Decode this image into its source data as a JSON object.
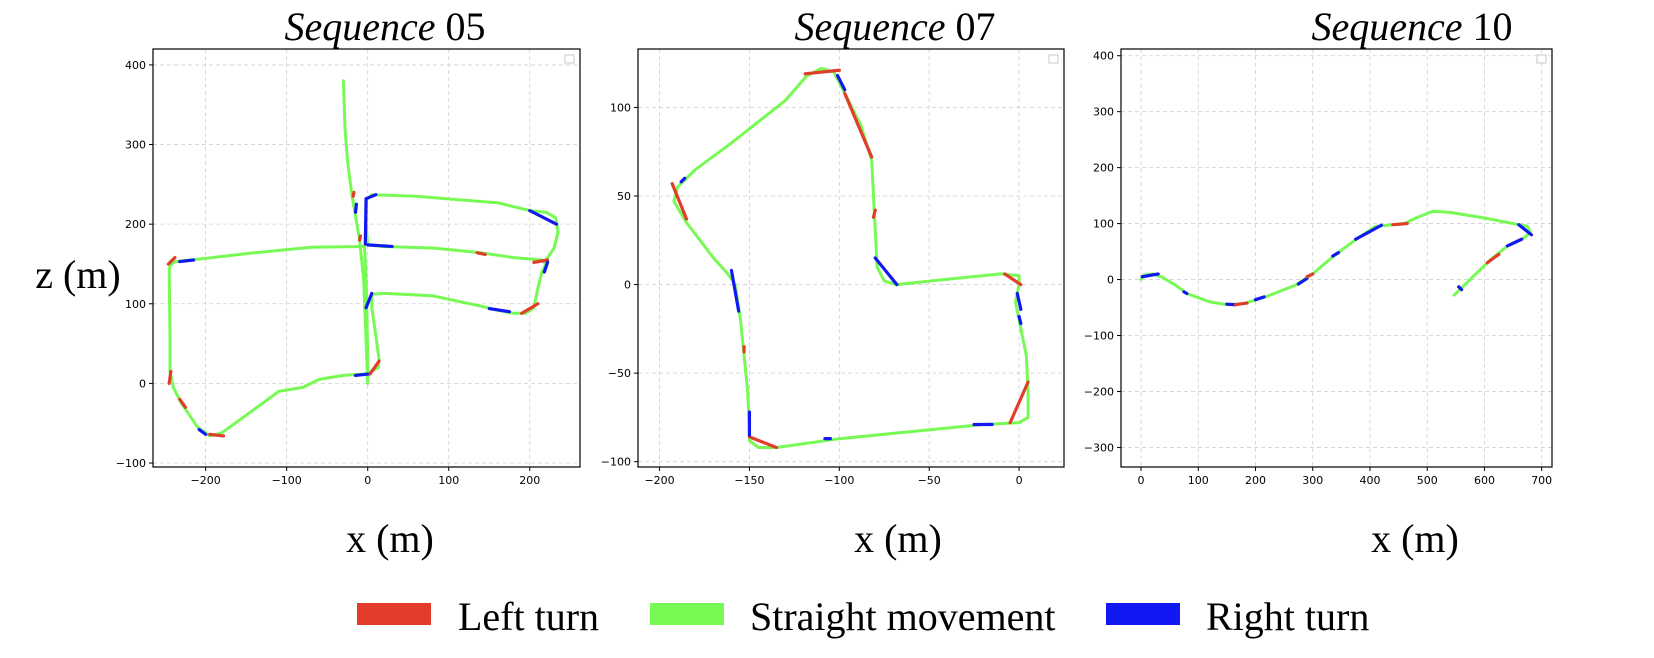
{
  "colors": {
    "left": "#e23d2a",
    "straight": "#77fb54",
    "right": "#1218f2"
  },
  "legend": {
    "placement": "bottom-center",
    "items": [
      {
        "key": "left",
        "label": "Left turn"
      },
      {
        "key": "straight",
        "label": "Straight movement"
      },
      {
        "key": "right",
        "label": "Right turn"
      }
    ]
  },
  "chart_data": [
    {
      "type": "line",
      "title_italic": "Sequence",
      "title_number": "05",
      "xlabel": "x (m)",
      "ylabel": "z (m)",
      "xlim": [
        -265,
        262
      ],
      "ylim": [
        -105,
        420
      ],
      "xticks": [
        -200,
        -100,
        0,
        100,
        200
      ],
      "yticks": [
        -100,
        0,
        100,
        200,
        300,
        400
      ],
      "grid": true,
      "trajectory": [
        [
          0,
          0
        ],
        [
          0,
          40
        ],
        [
          -2,
          130
        ],
        [
          -4,
          172
        ],
        [
          -70,
          171
        ],
        [
          -150,
          163
        ],
        [
          -200,
          157
        ],
        [
          -238,
          153
        ],
        [
          -244,
          148
        ],
        [
          -245,
          140
        ],
        [
          -244,
          60
        ],
        [
          -244,
          15
        ],
        [
          -240,
          -5
        ],
        [
          -230,
          -25
        ],
        [
          -210,
          -55
        ],
        [
          -195,
          -66
        ],
        [
          -180,
          -62
        ],
        [
          -150,
          -40
        ],
        [
          -110,
          -10
        ],
        [
          -80,
          -5
        ],
        [
          -60,
          5
        ],
        [
          -30,
          10
        ],
        [
          0,
          12
        ],
        [
          13,
          20
        ],
        [
          14,
          30
        ],
        [
          10,
          60
        ],
        [
          5,
          95
        ],
        [
          5,
          112
        ],
        [
          20,
          113
        ],
        [
          80,
          110
        ],
        [
          140,
          97
        ],
        [
          160,
          92
        ],
        [
          180,
          88
        ],
        [
          195,
          88
        ],
        [
          205,
          95
        ],
        [
          210,
          120
        ],
        [
          215,
          140
        ],
        [
          220,
          150
        ],
        [
          215,
          155
        ],
        [
          180,
          158
        ],
        [
          140,
          164
        ],
        [
          80,
          170
        ],
        [
          20,
          172
        ],
        [
          0,
          174
        ],
        [
          -2,
          200
        ],
        [
          -2,
          230
        ],
        [
          5,
          237
        ],
        [
          60,
          235
        ],
        [
          120,
          230
        ],
        [
          160,
          227
        ],
        [
          200,
          217
        ],
        [
          220,
          215
        ],
        [
          232,
          208
        ],
        [
          235,
          190
        ],
        [
          230,
          170
        ],
        [
          220,
          155
        ]
      ],
      "trajectory2": [
        [
          -30,
          380
        ],
        [
          -28,
          320
        ],
        [
          -25,
          280
        ],
        [
          -20,
          240
        ],
        [
          -10,
          180
        ],
        [
          -5,
          130
        ],
        [
          0,
          0
        ]
      ],
      "segments": [
        {
          "type": "left",
          "x": [
            -246,
            -238
          ],
          "z": [
            150,
            158
          ]
        },
        {
          "type": "right",
          "x": [
            -232,
            -215
          ],
          "z": [
            153,
            155
          ]
        },
        {
          "type": "left",
          "x": [
            -245,
            -243
          ],
          "z": [
            0,
            15
          ]
        },
        {
          "type": "left",
          "x": [
            -232,
            -225
          ],
          "z": [
            -20,
            -30
          ]
        },
        {
          "type": "right",
          "x": [
            -208,
            -200
          ],
          "z": [
            -58,
            -64
          ]
        },
        {
          "type": "left",
          "x": [
            -195,
            -178
          ],
          "z": [
            -64,
            -66
          ]
        },
        {
          "type": "right",
          "x": [
            -15,
            3
          ],
          "z": [
            10,
            12
          ]
        },
        {
          "type": "left",
          "x": [
            3,
            14
          ],
          "z": [
            12,
            28
          ]
        },
        {
          "type": "right",
          "x": [
            -2,
            5
          ],
          "z": [
            95,
            113
          ]
        },
        {
          "type": "right",
          "x": [
            150,
            175
          ],
          "z": [
            94,
            90
          ]
        },
        {
          "type": "left",
          "x": [
            190,
            210
          ],
          "z": [
            88,
            100
          ]
        },
        {
          "type": "left",
          "x": [
            205,
            222
          ],
          "z": [
            152,
            155
          ]
        },
        {
          "type": "right",
          "x": [
            218,
            222
          ],
          "z": [
            140,
            152
          ]
        },
        {
          "type": "left",
          "x": [
            135,
            145
          ],
          "z": [
            164,
            162
          ]
        },
        {
          "type": "right",
          "x": [
            0,
            30
          ],
          "z": [
            174,
            172
          ]
        },
        {
          "type": "right",
          "x": [
            -3,
            -2
          ],
          "z": [
            175,
            232
          ]
        },
        {
          "type": "right",
          "x": [
            -2,
            10
          ],
          "z": [
            232,
            237
          ]
        },
        {
          "type": "right",
          "x": [
            200,
            233
          ],
          "z": [
            217,
            200
          ]
        },
        {
          "type": "left",
          "x": [
            -18,
            -17
          ],
          "z": [
            235,
            240
          ]
        },
        {
          "type": "right",
          "x": [
            -15,
            -14
          ],
          "z": [
            215,
            225
          ]
        },
        {
          "type": "left",
          "x": [
            -10,
            -9
          ],
          "z": [
            180,
            185
          ]
        }
      ]
    },
    {
      "type": "line",
      "title_italic": "Sequence",
      "title_number": "07",
      "xlabel": "x (m)",
      "ylabel": "",
      "xlim": [
        -212,
        25
      ],
      "ylim": [
        -103,
        133
      ],
      "xticks": [
        -200,
        -150,
        -100,
        -50,
        0
      ],
      "yticks": [
        -100,
        -50,
        0,
        50,
        100
      ],
      "grid": true,
      "trajectory": [
        [
          0,
          0
        ],
        [
          -2,
          -10
        ],
        [
          1,
          -25
        ],
        [
          4,
          -40
        ],
        [
          5,
          -60
        ],
        [
          5,
          -75
        ],
        [
          0,
          -78
        ],
        [
          -20,
          -79
        ],
        [
          -60,
          -83
        ],
        [
          -100,
          -87
        ],
        [
          -135,
          -92
        ],
        [
          -145,
          -92
        ],
        [
          -150,
          -88
        ],
        [
          -150,
          -80
        ],
        [
          -151,
          -60
        ],
        [
          -153,
          -40
        ],
        [
          -155,
          -20
        ],
        [
          -158,
          0
        ],
        [
          -162,
          6
        ],
        [
          -170,
          15
        ],
        [
          -185,
          35
        ],
        [
          -192,
          47
        ],
        [
          -190,
          55
        ],
        [
          -180,
          65
        ],
        [
          -160,
          80
        ],
        [
          -130,
          104
        ],
        [
          -118,
          118
        ],
        [
          -110,
          122
        ],
        [
          -103,
          120
        ],
        [
          -98,
          110
        ],
        [
          -88,
          90
        ],
        [
          -82,
          70
        ],
        [
          -81,
          50
        ],
        [
          -80,
          30
        ],
        [
          -79,
          10
        ],
        [
          -75,
          2
        ],
        [
          -68,
          0
        ],
        [
          -40,
          3
        ],
        [
          -10,
          6
        ],
        [
          0,
          5
        ],
        [
          0,
          0
        ]
      ],
      "segments": [
        {
          "type": "left",
          "x": [
            -119,
            -100
          ],
          "z": [
            119,
            121
          ]
        },
        {
          "type": "right",
          "x": [
            -101,
            -97
          ],
          "z": [
            118,
            110
          ]
        },
        {
          "type": "left",
          "x": [
            -97,
            -82
          ],
          "z": [
            108,
            72
          ]
        },
        {
          "type": "left",
          "x": [
            -81,
            -80
          ],
          "z": [
            38,
            42
          ]
        },
        {
          "type": "right",
          "x": [
            -80,
            -68
          ],
          "z": [
            15,
            0
          ]
        },
        {
          "type": "left",
          "x": [
            -8,
            1
          ],
          "z": [
            6,
            0
          ]
        },
        {
          "type": "right",
          "x": [
            -1,
            1
          ],
          "z": [
            -5,
            -14
          ]
        },
        {
          "type": "right",
          "x": [
            0,
            1
          ],
          "z": [
            -18,
            -22
          ]
        },
        {
          "type": "left",
          "x": [
            5,
            -5
          ],
          "z": [
            -55,
            -78
          ]
        },
        {
          "type": "right",
          "x": [
            -15,
            -25
          ],
          "z": [
            -79,
            -79
          ]
        },
        {
          "type": "right",
          "x": [
            -105,
            -108
          ],
          "z": [
            -87,
            -87
          ]
        },
        {
          "type": "left",
          "x": [
            -135,
            -150
          ],
          "z": [
            -92,
            -86
          ]
        },
        {
          "type": "right",
          "x": [
            -150,
            -150
          ],
          "z": [
            -85,
            -72
          ]
        },
        {
          "type": "left",
          "x": [
            -153,
            -153
          ],
          "z": [
            -35,
            -38
          ]
        },
        {
          "type": "right",
          "x": [
            -156,
            -160
          ],
          "z": [
            -15,
            8
          ]
        },
        {
          "type": "left",
          "x": [
            -185,
            -193
          ],
          "z": [
            37,
            57
          ]
        },
        {
          "type": "right",
          "x": [
            -188,
            -186
          ],
          "z": [
            58,
            60
          ]
        }
      ]
    },
    {
      "type": "line",
      "title_italic": "Sequence",
      "title_number": "10",
      "xlabel": "x (m)",
      "ylabel": "",
      "xlim": [
        -35,
        718
      ],
      "ylim": [
        -335,
        412
      ],
      "xticks": [
        0,
        100,
        200,
        300,
        400,
        500,
        600,
        700
      ],
      "yticks": [
        -300,
        -200,
        -100,
        0,
        100,
        200,
        300,
        400
      ],
      "grid": true,
      "trajectory": [
        [
          0,
          0
        ],
        [
          5,
          8
        ],
        [
          20,
          10
        ],
        [
          35,
          5
        ],
        [
          60,
          -10
        ],
        [
          80,
          -25
        ],
        [
          120,
          -40
        ],
        [
          150,
          -45
        ],
        [
          180,
          -43
        ],
        [
          220,
          -30
        ],
        [
          270,
          -10
        ],
        [
          300,
          10
        ],
        [
          340,
          45
        ],
        [
          380,
          75
        ],
        [
          410,
          95
        ],
        [
          440,
          98
        ],
        [
          460,
          100
        ],
        [
          480,
          110
        ],
        [
          510,
          122
        ],
        [
          540,
          120
        ],
        [
          600,
          110
        ],
        [
          660,
          98
        ],
        [
          675,
          95
        ],
        [
          680,
          85
        ],
        [
          670,
          75
        ],
        [
          640,
          60
        ],
        [
          610,
          35
        ],
        [
          580,
          5
        ],
        [
          560,
          -15
        ],
        [
          547,
          -28
        ]
      ],
      "segments": [
        {
          "type": "right",
          "x": [
            2,
            30
          ],
          "z": [
            5,
            10
          ]
        },
        {
          "type": "right",
          "x": [
            75,
            80
          ],
          "z": [
            -22,
            -25
          ]
        },
        {
          "type": "right",
          "x": [
            150,
            165
          ],
          "z": [
            -44,
            -45
          ]
        },
        {
          "type": "left",
          "x": [
            165,
            185
          ],
          "z": [
            -45,
            -42
          ]
        },
        {
          "type": "right",
          "x": [
            200,
            215
          ],
          "z": [
            -36,
            -31
          ]
        },
        {
          "type": "right",
          "x": [
            275,
            290
          ],
          "z": [
            -8,
            2
          ]
        },
        {
          "type": "left",
          "x": [
            290,
            300
          ],
          "z": [
            5,
            10
          ]
        },
        {
          "type": "right",
          "x": [
            335,
            345
          ],
          "z": [
            42,
            48
          ]
        },
        {
          "type": "right",
          "x": [
            375,
            420
          ],
          "z": [
            72,
            97
          ]
        },
        {
          "type": "left",
          "x": [
            440,
            465
          ],
          "z": [
            98,
            100
          ]
        },
        {
          "type": "right",
          "x": [
            660,
            682
          ],
          "z": [
            98,
            80
          ]
        },
        {
          "type": "right",
          "x": [
            640,
            665
          ],
          "z": [
            60,
            72
          ]
        },
        {
          "type": "left",
          "x": [
            605,
            625
          ],
          "z": [
            30,
            45
          ]
        },
        {
          "type": "right",
          "x": [
            555,
            560
          ],
          "z": [
            -13,
            -18
          ]
        }
      ]
    }
  ]
}
